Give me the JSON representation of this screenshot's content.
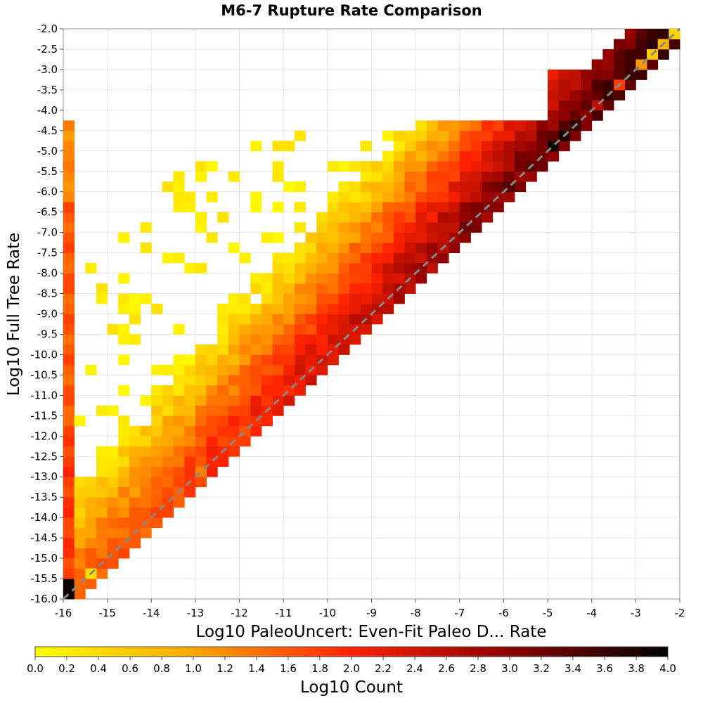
{
  "chart_data": {
    "type": "heatmap",
    "title": "M6-7 Rupture Rate Comparison",
    "xlabel": "Log10 PaleoUncert: Even-Fit Paleo D... Rate",
    "ylabel": "Log10 Full Tree Rate",
    "xlim": [
      -16,
      -2
    ],
    "ylim": [
      -16,
      -2
    ],
    "x_ticks": [
      "-16",
      "-15",
      "-14",
      "-13",
      "-12",
      "-11",
      "-10",
      "-9",
      "-8",
      "-7",
      "-6",
      "-5",
      "-4",
      "-3",
      "-2"
    ],
    "y_ticks": [
      "-2.0",
      "-2.5",
      "-3.0",
      "-3.5",
      "-4.0",
      "-4.5",
      "-5.0",
      "-5.5",
      "-6.0",
      "-6.5",
      "-7.0",
      "-7.5",
      "-8.0",
      "-8.5",
      "-9.0",
      "-9.5",
      "-10.0",
      "-10.5",
      "-11.0",
      "-11.5",
      "-12.0",
      "-12.5",
      "-13.0",
      "-13.5",
      "-14.0",
      "-14.5",
      "-15.0",
      "-15.5",
      "-16.0"
    ],
    "bin_width": 0.25,
    "grid": true,
    "reference_line": "y = x (dashed gray)",
    "colorbar": {
      "label": "Log10 Count",
      "range": [
        0,
        4
      ],
      "ticks": [
        "0.0",
        "0.2",
        "0.4",
        "0.6",
        "0.8",
        "1.0",
        "1.2",
        "1.4",
        "1.6",
        "1.8",
        "2.0",
        "2.2",
        "2.4",
        "2.6",
        "2.8",
        "3.0",
        "3.2",
        "3.4",
        "3.6",
        "3.8",
        "4.0"
      ],
      "colormap": [
        "#ffff00",
        "#ff9900",
        "#ff2200",
        "#880000",
        "#000000"
      ]
    },
    "description_of_density": "Counts concentrate along and just below the y=x diagonal (log10 count up to ~4 near x=-5..-4), with a sparse cloud above the diagonal and a dense column at x=-16 (log10 count ~1.5-2.0 between y=-16 and y=-4.5).",
    "bins": [
      [
        -16,
        -16,
        3.9
      ],
      [
        -15.75,
        -15.75,
        1.4
      ],
      [
        -15.5,
        -15.5,
        0.3
      ],
      [
        -5,
        -5,
        3.9
      ],
      [
        -4.75,
        -4.75,
        3.8
      ],
      [
        -4.5,
        -4.5,
        3.6
      ],
      [
        -4.25,
        -4.25,
        3.0
      ],
      [
        -4,
        -4,
        2.6
      ],
      [
        -3.5,
        -3.5,
        1.8
      ],
      [
        -3,
        -3,
        1.0
      ],
      [
        -2.75,
        -2.75,
        0.5
      ],
      [
        -2.5,
        -2.5,
        0.7
      ],
      [
        -2.25,
        -2.25,
        0.4
      ],
      [
        -6,
        -6,
        3.4
      ],
      [
        -7,
        -7,
        3.2
      ],
      [
        -8,
        -8,
        2.9
      ],
      [
        -9,
        -9,
        2.6
      ],
      [
        -10,
        -10,
        2.2
      ],
      [
        -11,
        -11,
        1.9
      ],
      [
        -12,
        -12,
        1.6
      ],
      [
        -13,
        -13,
        1.2
      ]
    ]
  }
}
